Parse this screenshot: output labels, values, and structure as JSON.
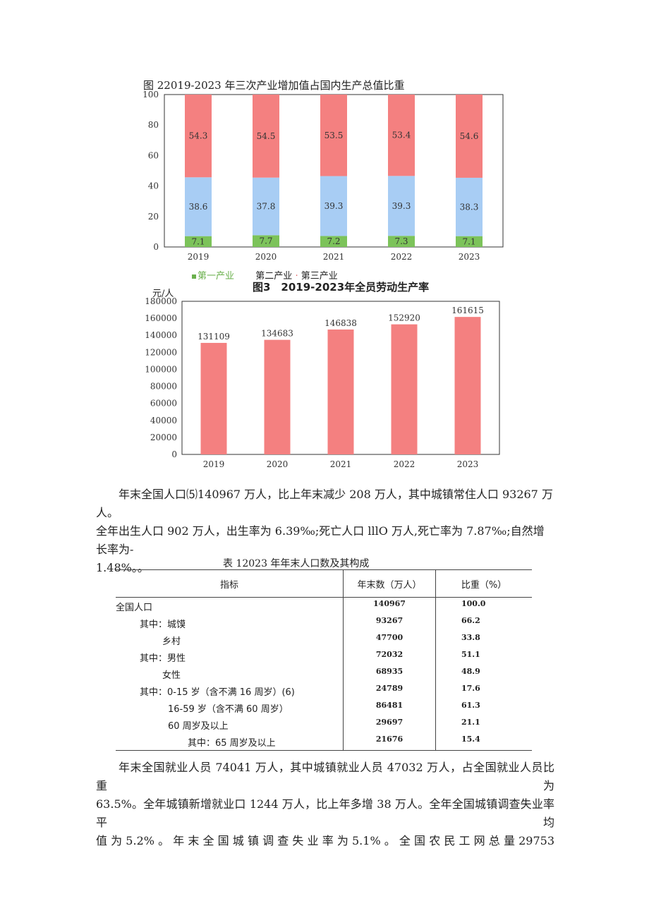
{
  "figure2": {
    "title": "图 22019-2023 年三次产业增加值占国内生产总值比重",
    "legend": {
      "primary": "第一产业",
      "secondary": "第二产业",
      "tertiary_prefix": "·",
      "tertiary": "第三产业"
    },
    "colors": {
      "primary": "#7cc35a",
      "secondary": "#a8cdf4",
      "tertiary": "#f48080"
    }
  },
  "figure3": {
    "title": "图3　2019-2023年全员劳动生产率",
    "unit": "元/人",
    "color": "#f48080"
  },
  "chart_data": [
    {
      "type": "bar",
      "stacked": true,
      "title": "图 22019-2023 年三次产业增加值占国内生产总值比重",
      "categories": [
        "2019",
        "2020",
        "2021",
        "2022",
        "2023"
      ],
      "series": [
        {
          "name": "第一产业",
          "values": [
            7.1,
            7.7,
            7.2,
            7.3,
            7.1
          ],
          "labels": [
            "7.1",
            "7.7",
            "7.2",
            "7.3",
            "7.1"
          ],
          "color": "#7cc35a"
        },
        {
          "name": "第二产业",
          "values": [
            38.6,
            37.8,
            39.3,
            39.3,
            38.3
          ],
          "labels": [
            "38.6",
            "37.8",
            "39.3",
            "39.3",
            "38.3"
          ],
          "color": "#a8cdf4"
        },
        {
          "name": "第三产业",
          "values": [
            54.3,
            54.5,
            53.5,
            53.4,
            54.6
          ],
          "labels": [
            "54.3",
            "54.5",
            "53.5",
            "53.4",
            "54.6"
          ],
          "color": "#f48080"
        }
      ],
      "ylim": [
        0,
        100
      ],
      "yticks": [
        "0",
        "20",
        "40",
        "60",
        "80",
        "100"
      ],
      "legend_position": "bottom-left",
      "grid": false
    },
    {
      "type": "bar",
      "title": "图3　2019-2023年全员劳动生产率",
      "ylabel": "元/人",
      "categories": [
        "2019",
        "2020",
        "2021",
        "2022",
        "2023"
      ],
      "values": [
        131109,
        134683,
        146838,
        152920,
        161615
      ],
      "labels": [
        "131109",
        "134683",
        "146838",
        "152920",
        "161615"
      ],
      "ylim": [
        0,
        180000
      ],
      "yticks": [
        "0",
        "20000",
        "40000",
        "60000",
        "80000",
        "100000",
        "120000",
        "140000",
        "160000",
        "180000"
      ],
      "color": "#f48080",
      "grid": false
    }
  ],
  "paragraph1": {
    "line1": "年末全国人口⑸140967 万人，比上年末减少 208 万人，其中城镇常住人口 93267 万人。",
    "line2": "全年出生人口 902 万人，出生率为 6.39‰;死亡人口 lllO 万人,死亡率为 7.87‰;自然增长率为-",
    "line3": "1.48%。。"
  },
  "table1": {
    "caption": "表 12023 年年末人口数及其构成",
    "headers": [
      "指标",
      "年末数（万人）",
      "比重（%）"
    ],
    "rows": [
      {
        "label": "全国人口",
        "value": "140967",
        "share": "100.0"
      },
      {
        "label": "其中：城馍",
        "value": "93267",
        "share": "66.2"
      },
      {
        "label": "乡村",
        "value": "47700",
        "share": "33.8"
      },
      {
        "label": "其中：男性",
        "value": "72032",
        "share": "51.1"
      },
      {
        "label": "女性",
        "value": "68935",
        "share": "48.9"
      },
      {
        "label": "其中：0-15 岁（含不满 16 周岁）(6)",
        "value": "24789",
        "share": "17.6"
      },
      {
        "label": "16-59 岁（含不满 60 周岁）",
        "value": "86481",
        "share": "61.3"
      },
      {
        "label": "60 周岁及以上",
        "value": "29697",
        "share": "21.1"
      },
      {
        "label": "其中：65 周岁及以上",
        "value": "21676",
        "share": "15.4"
      }
    ]
  },
  "paragraph2": {
    "line1": "年末全国就业人员 74041 万人，其中城镇就业人员 47032 万人，占全国就业人员比重为",
    "line2": "63.5%。全年城镇新增就业口 1244 万人，比上年多增 38 万人。全年全国城镇调查失业率平均",
    "line3": "值 为 5.2% 。 年 末 全 国 城 镇 调 查 失 业 率 为 5.1% 。 全 国 农 民 工 网 总 量 29753"
  }
}
